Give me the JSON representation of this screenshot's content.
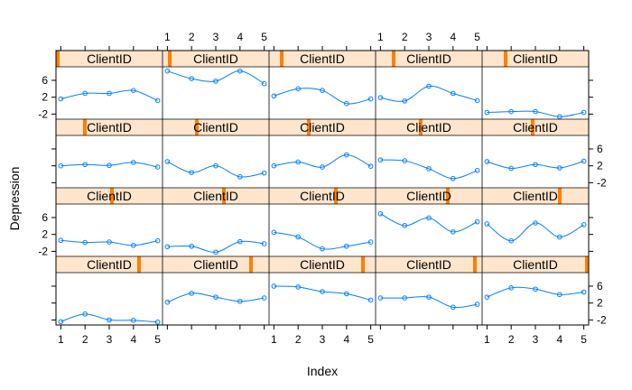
{
  "colors": {
    "background": "#ffffff",
    "strip_bg": "#ffe5cc",
    "strip_marker": "#ff7f00",
    "series_line": "#0080ff",
    "axis": "#000000"
  },
  "chart_data": {
    "type": "line",
    "style": "lattice trellis (xyplot), 5 columns x 4 rows, open-circle points joined by smooth curves",
    "xlabel": "Index",
    "ylabel": "Depression",
    "strip_label": "ClientID",
    "xlim": [
      0.8,
      5.2
    ],
    "ylim": [
      -3.2,
      9.2
    ],
    "xticks": [
      1,
      2,
      3,
      4,
      5
    ],
    "yticks": [
      -2,
      2,
      6
    ],
    "grid": false,
    "panels": [
      {
        "row": 1,
        "col": 1,
        "client_rank": 1,
        "x": [
          1,
          2,
          3,
          4,
          5
        ],
        "y": [
          1.6,
          2.9,
          2.9,
          3.6,
          1.2
        ]
      },
      {
        "row": 1,
        "col": 2,
        "client_rank": 2,
        "x": [
          1,
          2,
          3,
          4,
          5
        ],
        "y": [
          8.2,
          6.4,
          5.8,
          8.2,
          5.2
        ]
      },
      {
        "row": 1,
        "col": 3,
        "client_rank": 3,
        "x": [
          1,
          2,
          3,
          4,
          5
        ],
        "y": [
          2.3,
          4.0,
          3.6,
          0.5,
          1.6
        ]
      },
      {
        "row": 1,
        "col": 4,
        "client_rank": 4,
        "x": [
          1,
          2,
          3,
          4,
          5
        ],
        "y": [
          1.9,
          1.1,
          4.6,
          2.9,
          1.2
        ]
      },
      {
        "row": 1,
        "col": 5,
        "client_rank": 5,
        "x": [
          1,
          2,
          3,
          4,
          5
        ],
        "y": [
          -1.6,
          -1.4,
          -1.4,
          -2.6,
          -1.6
        ]
      },
      {
        "row": 2,
        "col": 1,
        "client_rank": 6,
        "x": [
          1,
          2,
          3,
          4,
          5
        ],
        "y": [
          2.0,
          2.3,
          2.1,
          2.8,
          1.7
        ]
      },
      {
        "row": 2,
        "col": 2,
        "client_rank": 7,
        "x": [
          1,
          2,
          3,
          4,
          5
        ],
        "y": [
          3.0,
          0.4,
          2.0,
          -0.6,
          0.3
        ]
      },
      {
        "row": 2,
        "col": 3,
        "client_rank": 8,
        "x": [
          1,
          2,
          3,
          4,
          5
        ],
        "y": [
          2.0,
          2.9,
          1.7,
          4.6,
          1.9
        ]
      },
      {
        "row": 2,
        "col": 4,
        "client_rank": 9,
        "x": [
          1,
          2,
          3,
          4,
          5
        ],
        "y": [
          3.4,
          3.2,
          1.3,
          -1.0,
          0.9
        ]
      },
      {
        "row": 2,
        "col": 5,
        "client_rank": 10,
        "x": [
          1,
          2,
          3,
          4,
          5
        ],
        "y": [
          3.0,
          1.4,
          2.3,
          1.5,
          3.1
        ]
      },
      {
        "row": 3,
        "col": 1,
        "client_rank": 11,
        "x": [
          1,
          2,
          3,
          4,
          5
        ],
        "y": [
          0.6,
          0.1,
          0.2,
          -0.6,
          0.5
        ]
      },
      {
        "row": 3,
        "col": 2,
        "client_rank": 12,
        "x": [
          1,
          2,
          3,
          4,
          5
        ],
        "y": [
          -0.9,
          -0.8,
          -2.2,
          0.3,
          -0.2
        ]
      },
      {
        "row": 3,
        "col": 3,
        "client_rank": 13,
        "x": [
          1,
          2,
          3,
          4,
          5
        ],
        "y": [
          2.5,
          1.4,
          -1.4,
          -0.8,
          0.2
        ]
      },
      {
        "row": 3,
        "col": 4,
        "client_rank": 14,
        "x": [
          1,
          2,
          3,
          4,
          5
        ],
        "y": [
          6.9,
          4.1,
          5.9,
          2.6,
          5.0
        ]
      },
      {
        "row": 3,
        "col": 5,
        "client_rank": 15,
        "x": [
          1,
          2,
          3,
          4,
          5
        ],
        "y": [
          4.5,
          0.5,
          4.7,
          1.4,
          4.3
        ]
      },
      {
        "row": 4,
        "col": 1,
        "client_rank": 16,
        "x": [
          1,
          2,
          3,
          4,
          5
        ],
        "y": [
          -2.4,
          -0.6,
          -2.0,
          -2.1,
          -2.5
        ]
      },
      {
        "row": 4,
        "col": 2,
        "client_rank": 17,
        "x": [
          1,
          2,
          3,
          4,
          5
        ],
        "y": [
          2.2,
          4.3,
          3.4,
          2.4,
          3.2
        ]
      },
      {
        "row": 4,
        "col": 3,
        "client_rank": 18,
        "x": [
          1,
          2,
          3,
          4,
          5
        ],
        "y": [
          6.0,
          5.8,
          4.7,
          4.2,
          2.7
        ]
      },
      {
        "row": 4,
        "col": 4,
        "client_rank": 19,
        "x": [
          1,
          2,
          3,
          4,
          5
        ],
        "y": [
          3.2,
          3.2,
          3.4,
          1.0,
          1.7
        ]
      },
      {
        "row": 4,
        "col": 5,
        "client_rank": 20,
        "x": [
          1,
          2,
          3,
          4,
          5
        ],
        "y": [
          3.4,
          5.6,
          5.3,
          4.0,
          4.6
        ]
      }
    ]
  }
}
